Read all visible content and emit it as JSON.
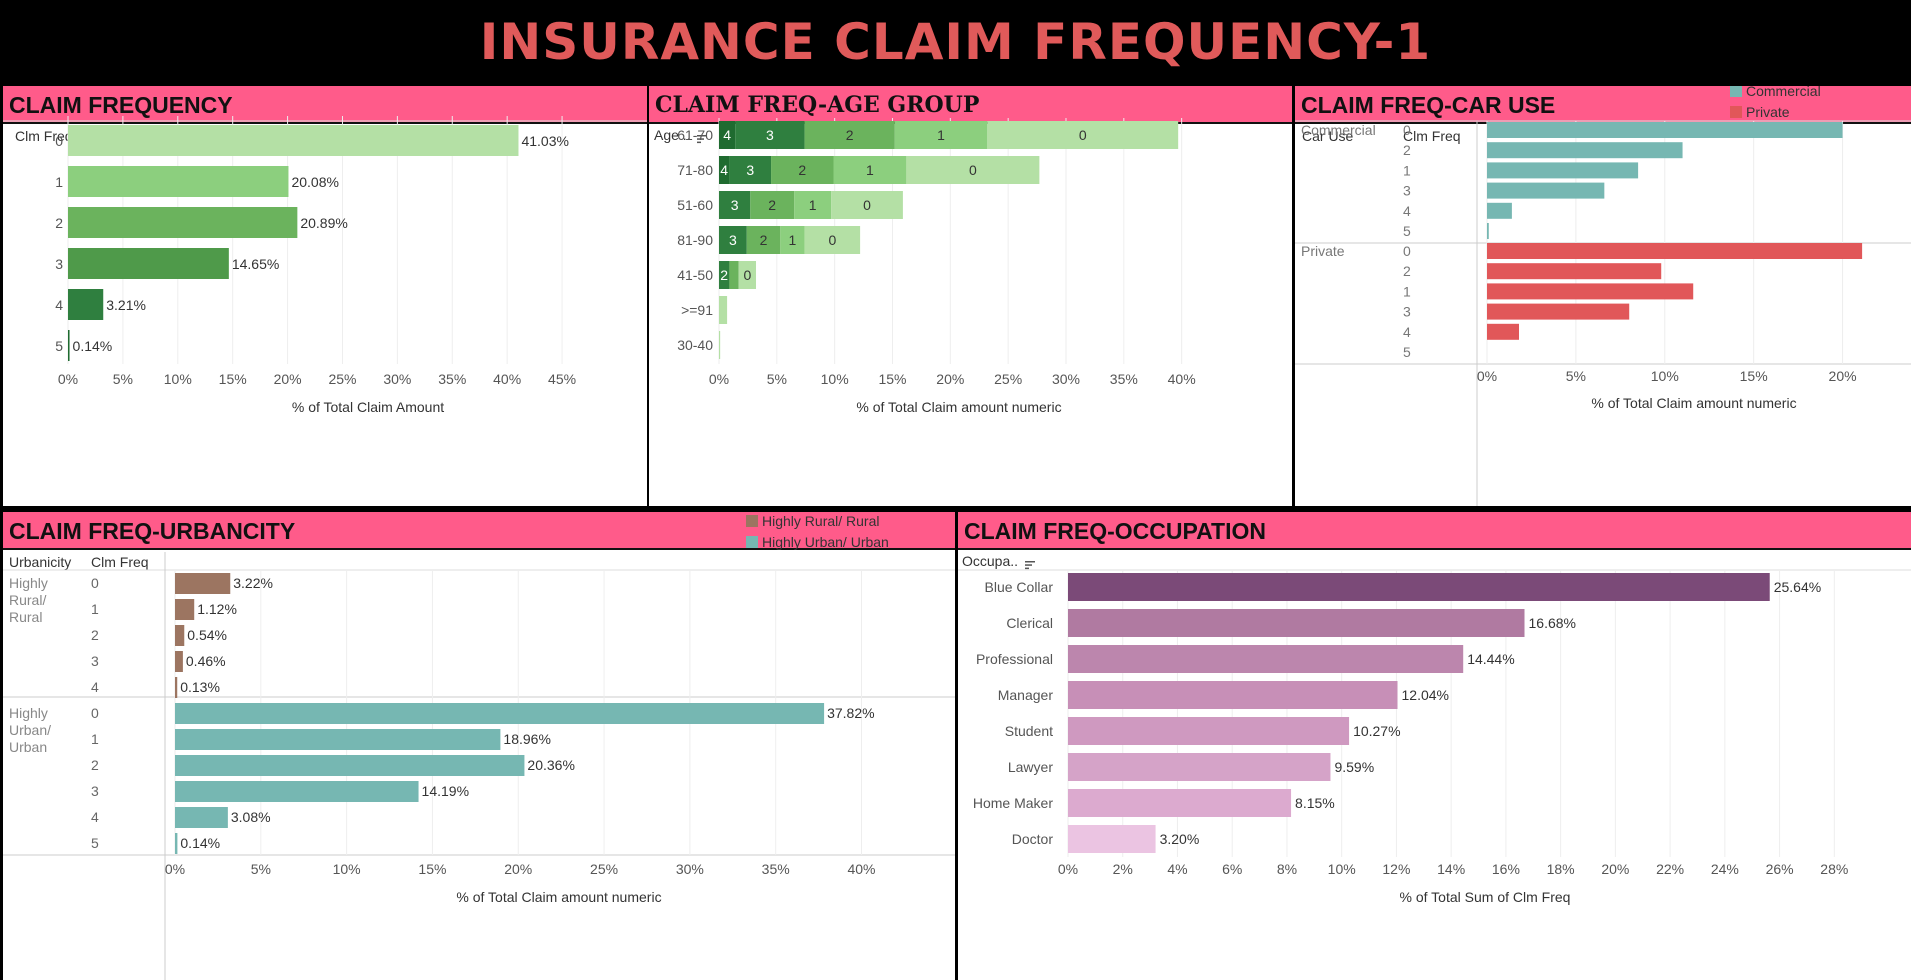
{
  "dashboard_title": "INSURANCE CLAIM FREQUENCY-1",
  "colors": {
    "header_bg": "#ff5b8a",
    "title": "#e05a5a",
    "commercial": "#76b7b2",
    "private": "#e15759",
    "rural": "#9c7561",
    "urban": "#76b7b2",
    "green_shades": [
      "#b4e0a5",
      "#8ccf7e",
      "#6bb35d",
      "#4f9a4a",
      "#2f7f3f",
      "#1f6b30"
    ],
    "purple_shades": [
      "#7b4a78",
      "#b07aa1",
      "#bc86ad",
      "#c78fb7",
      "#cf99c0",
      "#d5a3c8",
      "#dcaacf",
      "#ebc4e2"
    ]
  },
  "panels": {
    "claim_frequency": {
      "title": "CLAIM FREQUENCY",
      "row_header": "Clm Freq",
      "x_label": "% of Total Claim Amount"
    },
    "age_group": {
      "title": "CLAIM FREQ-AGE GROUP",
      "row_header": "Age ..",
      "x_label": "% of Total Claim amount numeric"
    },
    "car_use": {
      "title": "CLAIM FREQ-CAR USE",
      "col_headers": [
        "Car Use",
        "Clm Freq"
      ],
      "legend": [
        "Commercial",
        "Private"
      ],
      "x_label": "% of Total Claim amount numeric"
    },
    "urbancity": {
      "title": "CLAIM FREQ-URBANCITY",
      "col_headers": [
        "Urbanicity",
        "Clm Freq"
      ],
      "legend": [
        "Highly Rural/ Rural",
        "Highly Urban/ Urban"
      ],
      "x_label": "% of Total Claim amount numeric"
    },
    "occupation": {
      "title": "CLAIM FREQ-OCCUPATION",
      "row_header": "Occupa..",
      "x_label": "% of Total Sum of Clm Freq"
    }
  },
  "chart_data": [
    {
      "id": "claim_frequency",
      "type": "bar",
      "orientation": "horizontal",
      "categories": [
        "0",
        "1",
        "2",
        "3",
        "4",
        "5"
      ],
      "values": [
        41.03,
        20.08,
        20.89,
        14.65,
        3.21,
        0.14
      ],
      "labels": [
        "41.03%",
        "20.08%",
        "20.89%",
        "14.65%",
        "3.21%",
        "0.14%"
      ],
      "xlim": [
        0,
        48
      ],
      "ticks": [
        0,
        5,
        10,
        15,
        20,
        25,
        30,
        35,
        40,
        45
      ],
      "tick_labels": [
        "0%",
        "5%",
        "10%",
        "15%",
        "20%",
        "25%",
        "30%",
        "35%",
        "40%",
        "45%"
      ]
    },
    {
      "id": "age_group",
      "type": "bar",
      "orientation": "horizontal",
      "stacked": true,
      "categories": [
        "61-70",
        "71-80",
        "51-60",
        "81-90",
        "41-50",
        ">=91",
        "30-40"
      ],
      "series": [
        {
          "name": "4",
          "values": [
            1.4,
            0.9,
            0,
            0,
            0,
            0,
            0
          ]
        },
        {
          "name": "3",
          "values": [
            6.0,
            3.6,
            2.7,
            2.4,
            0.9,
            0,
            0
          ]
        },
        {
          "name": "2",
          "values": [
            7.8,
            5.4,
            3.8,
            2.9,
            0.8,
            0,
            0
          ]
        },
        {
          "name": "1",
          "values": [
            8.0,
            6.3,
            3.2,
            2.1,
            0,
            0,
            0
          ]
        },
        {
          "name": "0",
          "values": [
            16.5,
            11.5,
            6.2,
            4.8,
            1.5,
            0.7,
            0.1
          ]
        }
      ],
      "segment_labels": [
        [
          "4",
          "3",
          "2",
          "1",
          "0"
        ],
        [
          "4",
          "3",
          "2",
          "1",
          "0"
        ],
        [
          "",
          "3",
          "2",
          "1",
          "0"
        ],
        [
          "",
          "3",
          "2",
          "1",
          "0"
        ],
        [
          "",
          "2",
          "",
          "",
          "0"
        ],
        [
          "",
          "",
          "",
          "",
          ""
        ],
        [
          "",
          "",
          "",
          "",
          ""
        ]
      ],
      "xlim": [
        0,
        41.5
      ],
      "ticks": [
        0,
        5,
        10,
        15,
        20,
        25,
        30,
        35,
        40
      ],
      "tick_labels": [
        "0%",
        "5%",
        "10%",
        "15%",
        "20%",
        "25%",
        "30%",
        "35%",
        "40%"
      ]
    },
    {
      "id": "car_use",
      "type": "bar",
      "orientation": "horizontal",
      "groups": [
        {
          "name": "Commercial",
          "categories": [
            "0",
            "2",
            "1",
            "3",
            "4",
            "5"
          ],
          "values": [
            20.0,
            11.0,
            8.5,
            6.6,
            1.4,
            0.1
          ]
        },
        {
          "name": "Private",
          "categories": [
            "0",
            "2",
            "1",
            "3",
            "4",
            "5"
          ],
          "values": [
            21.1,
            9.8,
            11.6,
            8.0,
            1.8,
            0
          ]
        }
      ],
      "xlim": [
        0,
        22.5
      ],
      "ticks": [
        0,
        5,
        10,
        15,
        20
      ],
      "tick_labels": [
        "0%",
        "5%",
        "10%",
        "15%",
        "20%"
      ]
    },
    {
      "id": "urbancity",
      "type": "bar",
      "orientation": "horizontal",
      "groups": [
        {
          "name": "Highly Rural/ Rural",
          "categories": [
            "0",
            "1",
            "2",
            "3",
            "4"
          ],
          "values": [
            3.22,
            1.12,
            0.54,
            0.46,
            0.13
          ],
          "labels": [
            "3.22%",
            "1.12%",
            "0.54%",
            "0.46%",
            "0.13%"
          ]
        },
        {
          "name": "Highly Urban/ Urban",
          "categories": [
            "0",
            "1",
            "2",
            "3",
            "4",
            "5"
          ],
          "values": [
            37.82,
            18.96,
            20.36,
            14.19,
            3.08,
            0.14
          ],
          "labels": [
            "37.82%",
            "18.96%",
            "20.36%",
            "14.19%",
            "3.08%",
            "0.14%"
          ]
        }
      ],
      "xlim": [
        0,
        43
      ],
      "ticks": [
        0,
        5,
        10,
        15,
        20,
        25,
        30,
        35,
        40
      ],
      "tick_labels": [
        "0%",
        "5%",
        "10%",
        "15%",
        "20%",
        "25%",
        "30%",
        "35%",
        "40%"
      ]
    },
    {
      "id": "occupation",
      "type": "bar",
      "orientation": "horizontal",
      "categories": [
        "Blue Collar",
        "Clerical",
        "Professional",
        "Manager",
        "Student",
        "Lawyer",
        "Home Maker",
        "Doctor"
      ],
      "values": [
        25.64,
        16.68,
        14.44,
        12.04,
        10.27,
        9.59,
        8.15,
        3.2
      ],
      "labels": [
        "25.64%",
        "16.68%",
        "14.44%",
        "12.04%",
        "10.27%",
        "9.59%",
        "8.15%",
        "3.20%"
      ],
      "xlim": [
        0,
        28.5
      ],
      "ticks": [
        0,
        2,
        4,
        6,
        8,
        10,
        12,
        14,
        16,
        18,
        20,
        22,
        24,
        26,
        28
      ],
      "tick_labels": [
        "0%",
        "2%",
        "4%",
        "6%",
        "8%",
        "10%",
        "12%",
        "14%",
        "16%",
        "18%",
        "20%",
        "22%",
        "24%",
        "26%",
        "28%"
      ]
    }
  ]
}
